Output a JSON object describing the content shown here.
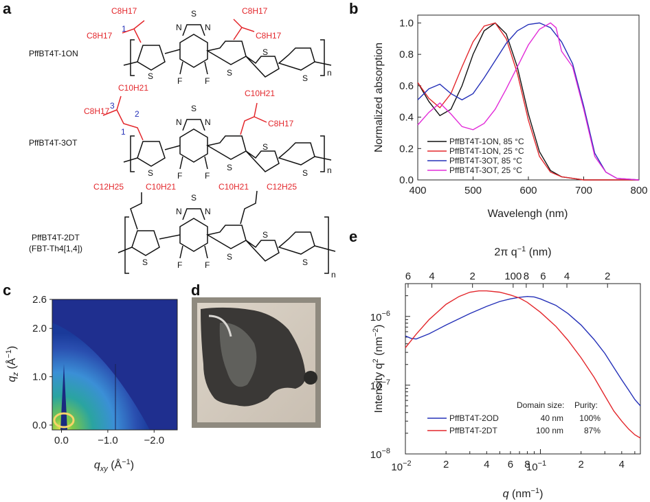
{
  "panels": {
    "a": "a",
    "b": "b",
    "c": "c",
    "d": "d",
    "e": "e"
  },
  "molecules": [
    {
      "name": "PffBT4T-1ON",
      "side_chains": [
        "C8H17",
        "C8H17",
        "C8H17",
        "C8H17"
      ],
      "position_labels": [
        "1"
      ],
      "repeat": "n"
    },
    {
      "name": "PffBT4T-3OT",
      "side_chains": [
        "C10H21",
        "C8H17",
        "C10H21",
        "C8H17"
      ],
      "position_labels": [
        "3",
        "2",
        "1"
      ],
      "repeat": "n"
    },
    {
      "name": "PffBT4T-2DT",
      "subname": "(FBT-Th4[1,4])",
      "side_chains": [
        "C12H25",
        "C10H21",
        "C10H21",
        "C12H25"
      ],
      "repeat": "n"
    }
  ],
  "atom_labels": {
    "N": "N",
    "S": "S",
    "F": "F"
  },
  "chart_data": [
    {
      "panel": "b",
      "type": "line",
      "xlabel": "Wavelengh (nm)",
      "ylabel": "Normalized absorption",
      "xlim": [
        400,
        800
      ],
      "ylim": [
        0,
        1.05
      ],
      "xticks": [
        400,
        500,
        600,
        700,
        800
      ],
      "yticks": [
        0.0,
        0.2,
        0.4,
        0.6,
        0.8,
        1.0
      ],
      "legend_position": "bottom-left",
      "series": [
        {
          "name": "PffBT4T-1ON, 85 °C",
          "color": "#111111",
          "x": [
            400,
            420,
            440,
            460,
            480,
            500,
            520,
            540,
            560,
            580,
            600,
            620,
            640,
            660,
            680,
            700,
            720,
            760,
            800
          ],
          "y": [
            0.62,
            0.5,
            0.41,
            0.45,
            0.6,
            0.8,
            0.95,
            1.0,
            0.93,
            0.72,
            0.42,
            0.18,
            0.06,
            0.02,
            0.01,
            0.0,
            0.0,
            0.0,
            0.0
          ]
        },
        {
          "name": "PffBT4T-1ON, 25 °C",
          "color": "#e3262b",
          "x": [
            400,
            420,
            440,
            460,
            480,
            500,
            520,
            540,
            560,
            580,
            600,
            620,
            640,
            660,
            680,
            700,
            720,
            760,
            800
          ],
          "y": [
            0.62,
            0.52,
            0.46,
            0.55,
            0.72,
            0.88,
            0.98,
            1.0,
            0.9,
            0.68,
            0.38,
            0.15,
            0.05,
            0.02,
            0.01,
            0.0,
            0.0,
            0.0,
            0.0
          ]
        },
        {
          "name": "PffBT4T-3OT, 85 °C",
          "color": "#2430b8",
          "x": [
            400,
            420,
            440,
            460,
            480,
            500,
            520,
            540,
            560,
            580,
            600,
            620,
            640,
            660,
            680,
            700,
            720,
            740,
            760,
            800
          ],
          "y": [
            0.51,
            0.58,
            0.61,
            0.55,
            0.51,
            0.55,
            0.65,
            0.76,
            0.87,
            0.95,
            0.99,
            1.0,
            0.97,
            0.88,
            0.74,
            0.47,
            0.17,
            0.05,
            0.01,
            0.0
          ]
        },
        {
          "name": "PffBT4T-3OT, 25 °C",
          "color": "#e22ad8",
          "x": [
            400,
            420,
            440,
            460,
            480,
            500,
            520,
            540,
            560,
            580,
            600,
            620,
            640,
            650,
            660,
            680,
            700,
            720,
            740,
            760,
            800
          ],
          "y": [
            0.35,
            0.43,
            0.49,
            0.42,
            0.34,
            0.32,
            0.36,
            0.45,
            0.58,
            0.72,
            0.86,
            0.96,
            1.0,
            0.97,
            0.82,
            0.72,
            0.45,
            0.15,
            0.05,
            0.01,
            0.0
          ]
        }
      ]
    },
    {
      "panel": "c",
      "type": "heatmap",
      "xlabel": "q",
      "xlabel_sub": "xy",
      "xlabel_unit": " (Å",
      "ylabel": "q",
      "ylabel_sub": "z",
      "ylabel_unit": " (Å",
      "unit_sup": "−1",
      "unit_close": ")",
      "xticks": [
        "0.0",
        "−1.0",
        "−2.0"
      ],
      "yticks": [
        "0.0",
        "1.0",
        "2.0",
        "2.6"
      ],
      "xtick_values": [
        0.0,
        -1.0,
        -2.0
      ],
      "ytick_values": [
        0.0,
        1.0,
        2.0,
        2.6
      ],
      "xlim": [
        0.2,
        -2.5
      ],
      "ylim": [
        -0.1,
        2.6
      ]
    },
    {
      "panel": "e",
      "type": "line",
      "xscale": "log",
      "yscale": "log",
      "xlabel": "q",
      "xlabel_unit": " (nm",
      "ylabel": "Intensity q",
      "ylabel_unit": " (nm",
      "top_axis_label": "2π q",
      "top_axis_unit": " (nm)",
      "sup_2": "2",
      "sup_minus2": "−2",
      "sup_minus1": "−1",
      "unit_close": ")",
      "xlim": [
        0.01,
        0.55
      ],
      "ylim": [
        1e-08,
        3e-06
      ],
      "xtick_major_labels": [
        "10",
        "10"
      ],
      "xtick_major_exponents": [
        "−2",
        "−1"
      ],
      "xtick_minor_labels": [
        "2",
        "4",
        "6",
        "8",
        "2",
        "4"
      ],
      "ytick_labels": [
        "10",
        "10",
        "10"
      ],
      "ytick_exponents": [
        "−8",
        "−7",
        "−6"
      ],
      "top_tick_labels": [
        "6",
        "4",
        "2",
        "100",
        "8",
        "6",
        "4",
        "2"
      ],
      "table_headers": [
        "Domain size:",
        "Purity:"
      ],
      "legend_position": "bottom-left",
      "series": [
        {
          "name": "PffBT4T-2OD",
          "color": "#2430b8",
          "domain_size": "40 nm",
          "purity": "100%",
          "x": [
            0.01,
            0.011,
            0.012,
            0.015,
            0.02,
            0.03,
            0.04,
            0.05,
            0.06,
            0.07,
            0.08,
            0.09,
            0.1,
            0.13,
            0.16,
            0.2,
            0.25,
            0.3,
            0.35,
            0.4,
            0.45,
            0.5,
            0.55
          ],
          "y": [
            5.2e-07,
            4.8e-07,
            4.7e-07,
            5.6e-07,
            7.5e-07,
            1.1e-06,
            1.4e-06,
            1.65e-06,
            1.8e-06,
            1.9e-06,
            1.95e-06,
            1.92e-06,
            1.8e-06,
            1.45e-06,
            1.1e-06,
            7.5e-07,
            4.6e-07,
            2.9e-07,
            1.8e-07,
            1.2e-07,
            8.5e-08,
            6.2e-08,
            5e-08
          ]
        },
        {
          "name": "PffBT4T-2DT",
          "color": "#e3262b",
          "domain_size": "100 nm",
          "purity": "87%",
          "x": [
            0.01,
            0.012,
            0.015,
            0.02,
            0.025,
            0.03,
            0.035,
            0.04,
            0.05,
            0.06,
            0.07,
            0.08,
            0.1,
            0.13,
            0.16,
            0.2,
            0.25,
            0.3,
            0.35,
            0.4,
            0.45,
            0.5,
            0.55
          ],
          "y": [
            3.5e-07,
            5.5e-07,
            9e-07,
            1.5e-06,
            1.95e-06,
            2.25e-06,
            2.35e-06,
            2.35e-06,
            2.25e-06,
            2.05e-06,
            1.85e-06,
            1.6e-06,
            1.15e-06,
            7.2e-07,
            4.5e-07,
            2.5e-07,
            1.3e-07,
            7e-08,
            4.2e-08,
            3e-08,
            2.3e-08,
            1.9e-08,
            1.7e-08
          ]
        }
      ]
    }
  ]
}
